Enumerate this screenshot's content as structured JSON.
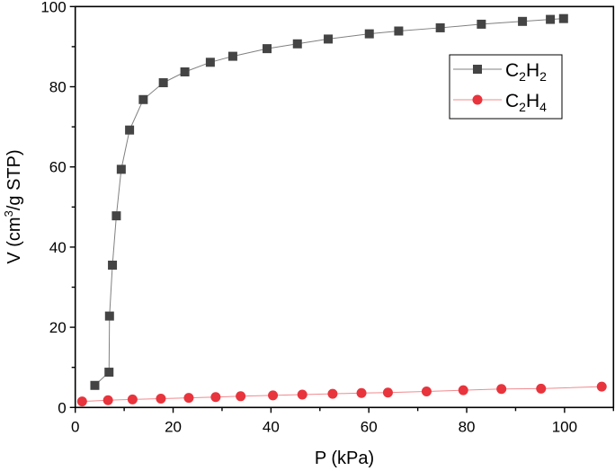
{
  "chart_data": {
    "type": "line",
    "xlabel": "P (kPa)",
    "ylabel_main": "V (cm",
    "ylabel_sup": "3",
    "ylabel_tail": "/g STP)",
    "xlim": [
      0,
      110
    ],
    "ylim": [
      0,
      100
    ],
    "xticks": [
      "0",
      "20",
      "40",
      "60",
      "80",
      "100"
    ],
    "yticks": [
      "0",
      "20",
      "40",
      "60",
      "80",
      "100"
    ],
    "grid": false,
    "legend_position": "top-right",
    "series": [
      {
        "name": "C2H2",
        "name_parts": [
          "C",
          "2",
          "H",
          "2"
        ],
        "marker": "square",
        "color": "#444444",
        "line_color": "#808080",
        "x": [
          4.0,
          6.9,
          7.0,
          7.6,
          8.4,
          9.4,
          11.1,
          13.9,
          18.0,
          22.4,
          27.6,
          32.2,
          39.2,
          45.4,
          51.7,
          60.1,
          66.1,
          74.6,
          83.0,
          91.4,
          97.1,
          99.8
        ],
        "y": [
          5.5,
          8.8,
          22.8,
          35.5,
          47.8,
          59.4,
          69.2,
          76.8,
          81.0,
          83.7,
          86.1,
          87.6,
          89.5,
          90.7,
          91.9,
          93.2,
          93.9,
          94.7,
          95.6,
          96.3,
          96.8,
          97.0
        ]
      },
      {
        "name": "C2H4",
        "name_parts": [
          "C",
          "2",
          "H",
          "4"
        ],
        "marker": "circle",
        "color": "#e8343c",
        "line_color": "#f08a8e",
        "x": [
          1.4,
          6.7,
          11.7,
          17.5,
          23.2,
          28.7,
          33.8,
          40.4,
          46.4,
          52.6,
          58.5,
          63.9,
          71.8,
          79.3,
          87.1,
          95.2,
          107.6
        ],
        "y": [
          1.5,
          1.8,
          2.0,
          2.2,
          2.4,
          2.6,
          2.8,
          3.0,
          3.2,
          3.4,
          3.6,
          3.7,
          4.0,
          4.3,
          4.6,
          4.7,
          5.2
        ]
      }
    ]
  }
}
